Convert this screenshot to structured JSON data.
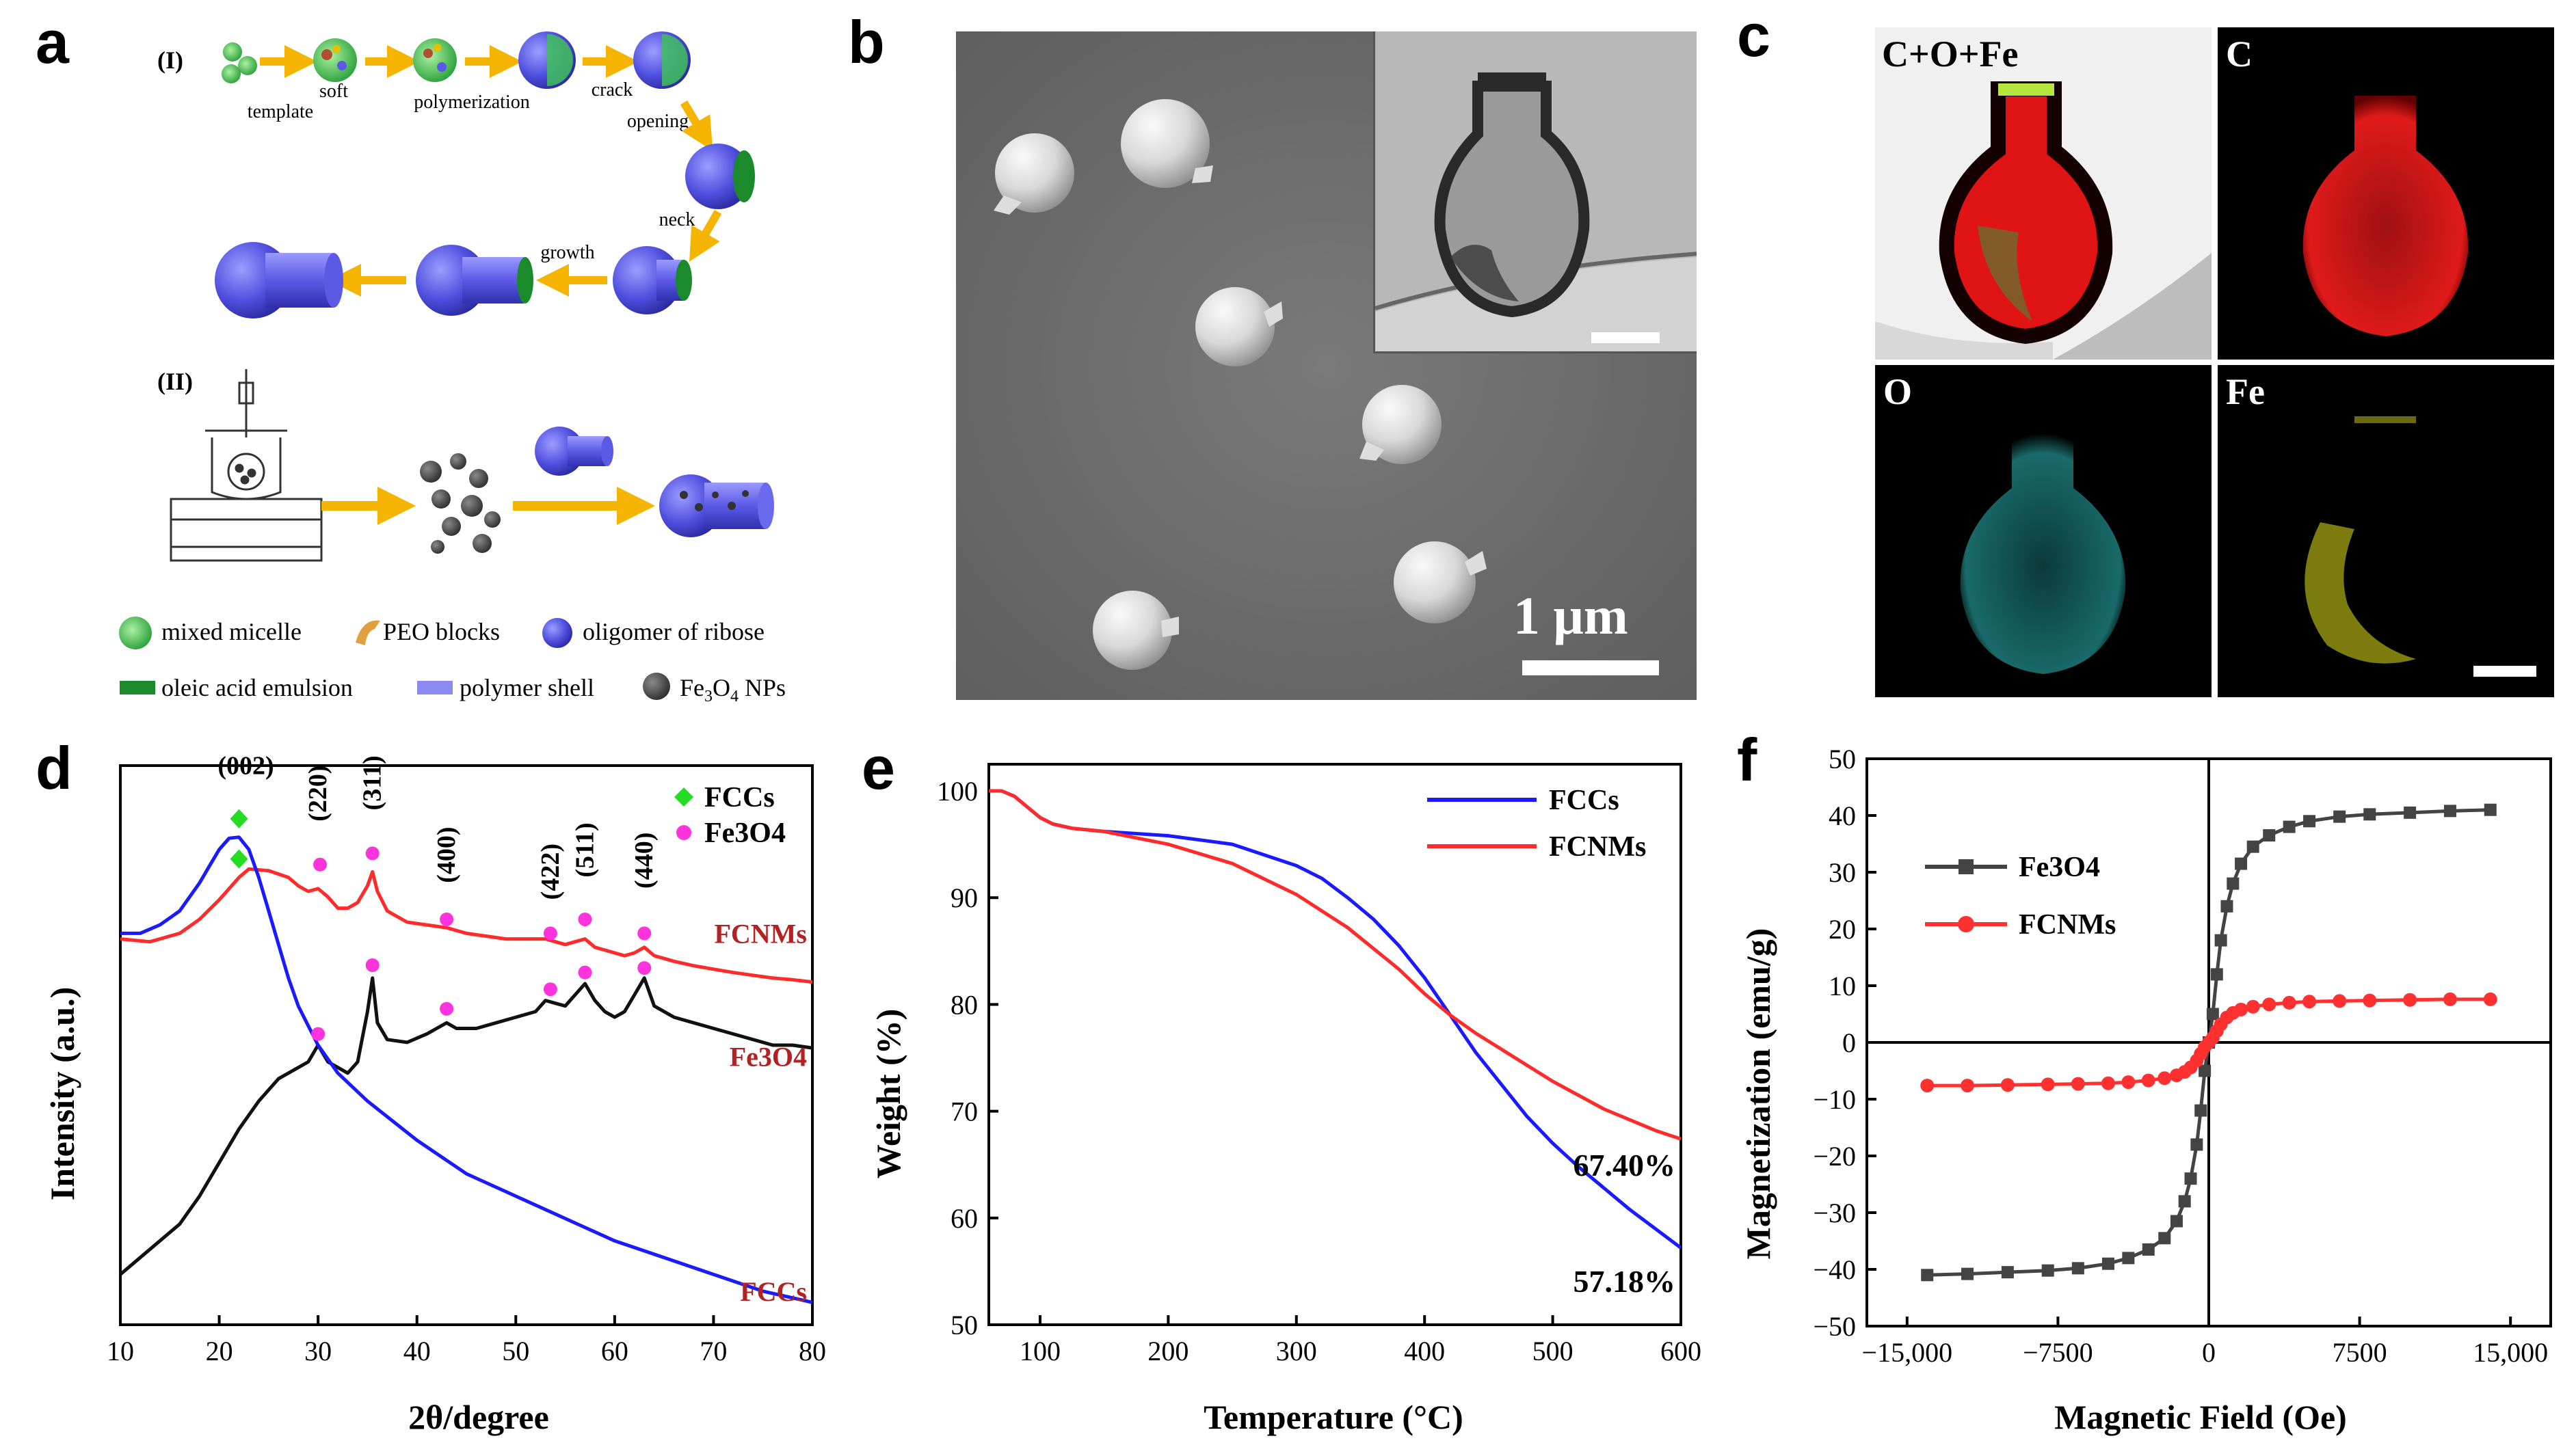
{
  "panel_labels": {
    "a": "a",
    "b": "b",
    "c": "c",
    "d": "d",
    "e": "e",
    "f": "f"
  },
  "panel_a": {
    "section_I": "(I)",
    "section_II": "(II)",
    "steps": {
      "soft": "soft",
      "template": "template",
      "polymerization": "polymerization",
      "crack": "crack",
      "opening": "opening",
      "neck": "neck",
      "growth": "growth"
    },
    "legend": {
      "mixed_micelle": "mixed micelle",
      "peo_blocks": "PEO blocks",
      "oligomer": "oligomer of ribose",
      "oleic": "oleic acid emulsion",
      "polymer_shell": "polymer shell",
      "fe3o4_prefix": "Fe",
      "fe3o4_sub3": "3",
      "fe3o4_mid": "O",
      "fe3o4_sub4": "4",
      "fe3o4_suffix": " NPs"
    },
    "colors": {
      "micelle": "#3fbf5a",
      "oligomer": "#5a5ae6",
      "oleic": "#1a8a2a",
      "shell": "#8a8af0",
      "np": "#4a4a4a",
      "arrow": "#f5b400"
    }
  },
  "panel_b": {
    "scale_label": "1 μm"
  },
  "panel_c": {
    "tiles": {
      "combined": "C+O+Fe",
      "c": "C",
      "o": "O",
      "fe": "Fe"
    }
  },
  "chart_data": [
    {
      "id": "d",
      "type": "line",
      "xlabel": "2θ/degree",
      "ylabel": "Intensity (a.u.)",
      "xlim": [
        10,
        80
      ],
      "xticks": [
        "10",
        "20",
        "30",
        "40",
        "50",
        "60",
        "70",
        "80"
      ],
      "legend": [
        {
          "name": "FCCs",
          "marker": "diamond",
          "color": "#22dd22"
        },
        {
          "name": "Fe3O4",
          "marker": "circle",
          "color": "#ff33dd"
        }
      ],
      "peak_labels": [
        {
          "text": "(002)",
          "x": 22
        },
        {
          "text": "(220)",
          "x": 30
        },
        {
          "text": "(311)",
          "x": 35.5
        },
        {
          "text": "(400)",
          "x": 43
        },
        {
          "text": "(422)",
          "x": 53.5
        },
        {
          "text": "(511)",
          "x": 57
        },
        {
          "text": "(440)",
          "x": 63
        }
      ],
      "series": [
        {
          "name": "FCNMs",
          "color": "#ff2a2a",
          "label_color": "#b22222",
          "x": [
            10,
            13,
            16,
            18,
            20,
            22,
            23,
            25,
            27,
            28,
            29,
            30,
            31,
            32,
            33,
            34,
            35,
            35.5,
            36,
            37,
            39,
            41,
            43,
            45,
            47,
            49,
            51,
            53,
            54,
            55,
            56,
            57,
            58,
            59,
            61,
            62,
            63,
            64,
            66,
            68,
            70,
            72,
            74,
            76,
            78,
            80
          ],
          "y": [
            0.69,
            0.685,
            0.7,
            0.725,
            0.76,
            0.8,
            0.815,
            0.812,
            0.8,
            0.785,
            0.775,
            0.78,
            0.765,
            0.745,
            0.745,
            0.755,
            0.785,
            0.81,
            0.775,
            0.74,
            0.72,
            0.715,
            0.71,
            0.7,
            0.695,
            0.69,
            0.69,
            0.69,
            0.685,
            0.68,
            0.685,
            0.69,
            0.675,
            0.67,
            0.66,
            0.665,
            0.675,
            0.66,
            0.65,
            0.642,
            0.636,
            0.63,
            0.625,
            0.62,
            0.617,
            0.613
          ]
        },
        {
          "name": "Fe3O4",
          "color": "#111111",
          "label_color": "#b22222",
          "x": [
            10,
            12,
            14,
            16,
            18,
            20,
            22,
            24,
            26,
            28,
            29,
            30,
            31,
            32,
            33,
            34,
            35,
            35.5,
            36,
            37,
            39,
            41,
            42,
            43,
            44,
            46,
            48,
            50,
            52,
            53,
            54,
            55,
            56,
            57,
            58,
            59,
            60,
            61,
            62,
            63,
            64,
            66,
            68,
            70,
            72,
            74,
            76,
            78,
            80
          ],
          "y": [
            0.09,
            0.12,
            0.15,
            0.18,
            0.23,
            0.29,
            0.35,
            0.4,
            0.44,
            0.46,
            0.47,
            0.5,
            0.47,
            0.46,
            0.45,
            0.47,
            0.56,
            0.62,
            0.54,
            0.51,
            0.505,
            0.52,
            0.53,
            0.54,
            0.53,
            0.53,
            0.54,
            0.55,
            0.56,
            0.58,
            0.575,
            0.57,
            0.59,
            0.61,
            0.58,
            0.56,
            0.55,
            0.56,
            0.59,
            0.62,
            0.57,
            0.55,
            0.54,
            0.53,
            0.52,
            0.51,
            0.5,
            0.5,
            0.495
          ]
        },
        {
          "name": "FCCs",
          "color": "#1a1aff",
          "label_color": "#b22222",
          "x": [
            10,
            12,
            14,
            16,
            18,
            19,
            20,
            21,
            22,
            23,
            24,
            25,
            26,
            27,
            28,
            30,
            32,
            35,
            40,
            45,
            50,
            55,
            60,
            65,
            70,
            75,
            80
          ],
          "y": [
            0.7,
            0.7,
            0.715,
            0.74,
            0.79,
            0.82,
            0.85,
            0.87,
            0.872,
            0.85,
            0.8,
            0.74,
            0.68,
            0.62,
            0.57,
            0.5,
            0.45,
            0.4,
            0.33,
            0.27,
            0.23,
            0.19,
            0.15,
            0.12,
            0.09,
            0.06,
            0.04
          ]
        }
      ],
      "markers": [
        {
          "series": "FCCs",
          "shape": "diamond",
          "points": [
            [
              22,
              0.905
            ],
            [
              22,
              0.833
            ]
          ]
        },
        {
          "series": "Fe3O4",
          "shape": "circle",
          "points": [
            [
              30.2,
              0.823
            ],
            [
              35.5,
              0.843
            ],
            [
              43,
              0.725
            ],
            [
              53.5,
              0.7
            ],
            [
              57,
              0.725
            ],
            [
              63,
              0.7
            ],
            [
              30,
              0.52
            ],
            [
              35.5,
              0.643
            ],
            [
              43,
              0.565
            ],
            [
              53.5,
              0.6
            ],
            [
              57,
              0.63
            ],
            [
              63,
              0.638
            ]
          ]
        }
      ]
    },
    {
      "id": "e",
      "type": "line",
      "xlabel": "Temperature (°C)",
      "ylabel": "Weight (%)",
      "xlim": [
        60,
        600
      ],
      "ylim": [
        50,
        102.5
      ],
      "xticks": [
        100,
        200,
        300,
        400,
        500,
        600
      ],
      "yticks": [
        50,
        60,
        70,
        80,
        90,
        100
      ],
      "annotations": [
        "67.40%",
        "57.18%"
      ],
      "series": [
        {
          "name": "FCCs",
          "color": "#1a1aff",
          "x": [
            60,
            70,
            80,
            90,
            100,
            110,
            125,
            150,
            200,
            250,
            300,
            320,
            340,
            360,
            380,
            400,
            420,
            440,
            460,
            480,
            500,
            520,
            540,
            560,
            580,
            600
          ],
          "y": [
            100,
            100,
            99.5,
            98.5,
            97.5,
            96.9,
            96.5,
            96.2,
            95.8,
            95,
            93,
            91.8,
            90,
            88,
            85.5,
            82.5,
            79,
            75.5,
            72.5,
            69.5,
            67,
            64.8,
            62.8,
            60.8,
            59,
            57.2
          ]
        },
        {
          "name": "FCNMs",
          "color": "#ff2a2a",
          "x": [
            60,
            70,
            80,
            90,
            100,
            110,
            125,
            150,
            200,
            250,
            300,
            340,
            380,
            400,
            420,
            440,
            460,
            480,
            500,
            520,
            540,
            560,
            580,
            600
          ],
          "y": [
            100,
            100,
            99.5,
            98.5,
            97.5,
            96.9,
            96.5,
            96.2,
            95,
            93.2,
            90.3,
            87.2,
            83.3,
            81,
            79,
            77.3,
            75.8,
            74.3,
            72.8,
            71.5,
            70.2,
            69.2,
            68.2,
            67.4
          ]
        }
      ]
    },
    {
      "id": "f",
      "type": "scatter",
      "xlabel": "Magnetic Field (Oe)",
      "ylabel": "Magnetization (emu/g)",
      "xlim": [
        -17000,
        17000
      ],
      "ylim": [
        -50,
        50
      ],
      "xticks": [
        "−15,000",
        "−7500",
        "0",
        "7500",
        "15,000"
      ],
      "xtick_values": [
        -15000,
        -7500,
        0,
        7500,
        15000
      ],
      "ytick_labels": [
        "−50",
        "−40",
        "−30",
        "−20",
        "−10",
        "0",
        "10",
        "20",
        "30",
        "40",
        "50"
      ],
      "ytick_values": [
        -50,
        -40,
        -30,
        -20,
        -10,
        0,
        10,
        20,
        30,
        40,
        50
      ],
      "series": [
        {
          "name": "Fe3O4",
          "color": "#444444",
          "marker": "square",
          "x": [
            -14000,
            -12000,
            -10000,
            -8000,
            -6500,
            -5000,
            -4000,
            -3000,
            -2200,
            -1600,
            -1200,
            -900,
            -600,
            -400,
            -200,
            0,
            200,
            400,
            600,
            900,
            1200,
            1600,
            2200,
            3000,
            4000,
            5000,
            6500,
            8000,
            10000,
            12000,
            14000
          ],
          "y": [
            -41,
            -40.8,
            -40.5,
            -40.2,
            -39.8,
            -39,
            -38,
            -36.5,
            -34.5,
            -31.5,
            -28,
            -24,
            -18,
            -12,
            -5,
            0,
            5,
            12,
            18,
            24,
            28,
            31.5,
            34.5,
            36.5,
            38,
            39,
            39.8,
            40.2,
            40.5,
            40.8,
            41
          ]
        },
        {
          "name": "FCNMs",
          "color": "#ff3030",
          "marker": "circle",
          "x": [
            -14000,
            -12000,
            -10000,
            -8000,
            -6500,
            -5000,
            -4000,
            -3000,
            -2200,
            -1600,
            -1200,
            -900,
            -600,
            -400,
            -200,
            0,
            200,
            400,
            600,
            900,
            1200,
            1600,
            2200,
            3000,
            4000,
            5000,
            6500,
            8000,
            10000,
            12000,
            14000
          ],
          "y": [
            -7.6,
            -7.6,
            -7.5,
            -7.4,
            -7.3,
            -7.2,
            -7,
            -6.7,
            -6.3,
            -5.8,
            -5.2,
            -4.4,
            -3.2,
            -2,
            -0.8,
            0,
            0.8,
            2,
            3.2,
            4.4,
            5.2,
            5.8,
            6.3,
            6.7,
            7,
            7.2,
            7.3,
            7.4,
            7.5,
            7.6,
            7.6
          ]
        }
      ]
    }
  ]
}
